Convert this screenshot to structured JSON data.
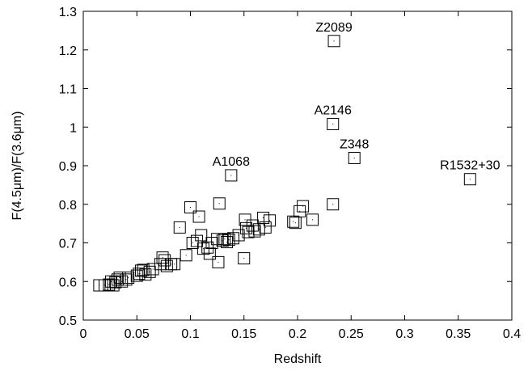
{
  "chart_data": {
    "type": "scatter",
    "title": "",
    "xlabel": "Redshift",
    "ylabel": "F(4.5μm)/F(3.6μm)",
    "xlim": [
      0,
      0.4
    ],
    "ylim": [
      0.5,
      1.3
    ],
    "xticks": [
      "0",
      "0.05",
      "0.1",
      "0.15",
      "0.2",
      "0.25",
      "0.3",
      "0.35",
      "0.4"
    ],
    "yticks": [
      "0.5",
      "0.6",
      "0.7",
      "0.8",
      "0.9",
      "1",
      "1.1",
      "1.2",
      "1.3"
    ],
    "grid": false,
    "legend": "none",
    "marker": "open-square",
    "points": [
      {
        "x": 0.015,
        "y": 0.59
      },
      {
        "x": 0.02,
        "y": 0.59
      },
      {
        "x": 0.024,
        "y": 0.592
      },
      {
        "x": 0.026,
        "y": 0.6
      },
      {
        "x": 0.028,
        "y": 0.59
      },
      {
        "x": 0.03,
        "y": 0.598
      },
      {
        "x": 0.032,
        "y": 0.605
      },
      {
        "x": 0.034,
        "y": 0.61
      },
      {
        "x": 0.036,
        "y": 0.6
      },
      {
        "x": 0.04,
        "y": 0.605
      },
      {
        "x": 0.042,
        "y": 0.61
      },
      {
        "x": 0.05,
        "y": 0.615
      },
      {
        "x": 0.052,
        "y": 0.62
      },
      {
        "x": 0.054,
        "y": 0.628
      },
      {
        "x": 0.056,
        "y": 0.63
      },
      {
        "x": 0.058,
        "y": 0.618
      },
      {
        "x": 0.062,
        "y": 0.625
      },
      {
        "x": 0.065,
        "y": 0.632
      },
      {
        "x": 0.072,
        "y": 0.645
      },
      {
        "x": 0.074,
        "y": 0.662
      },
      {
        "x": 0.076,
        "y": 0.655
      },
      {
        "x": 0.078,
        "y": 0.64
      },
      {
        "x": 0.082,
        "y": 0.645
      },
      {
        "x": 0.085,
        "y": 0.645
      },
      {
        "x": 0.09,
        "y": 0.74
      },
      {
        "x": 0.096,
        "y": 0.668
      },
      {
        "x": 0.1,
        "y": 0.792
      },
      {
        "x": 0.102,
        "y": 0.7
      },
      {
        "x": 0.106,
        "y": 0.705
      },
      {
        "x": 0.108,
        "y": 0.768
      },
      {
        "x": 0.11,
        "y": 0.72
      },
      {
        "x": 0.112,
        "y": 0.685
      },
      {
        "x": 0.116,
        "y": 0.688
      },
      {
        "x": 0.118,
        "y": 0.672
      },
      {
        "x": 0.12,
        "y": 0.7
      },
      {
        "x": 0.125,
        "y": 0.71
      },
      {
        "x": 0.126,
        "y": 0.65
      },
      {
        "x": 0.127,
        "y": 0.802
      },
      {
        "x": 0.13,
        "y": 0.706
      },
      {
        "x": 0.132,
        "y": 0.71
      },
      {
        "x": 0.134,
        "y": 0.702
      },
      {
        "x": 0.136,
        "y": 0.708
      },
      {
        "x": 0.138,
        "y": 0.875
      },
      {
        "x": 0.14,
        "y": 0.712
      },
      {
        "x": 0.145,
        "y": 0.72
      },
      {
        "x": 0.15,
        "y": 0.66
      },
      {
        "x": 0.151,
        "y": 0.76
      },
      {
        "x": 0.152,
        "y": 0.738
      },
      {
        "x": 0.154,
        "y": 0.728
      },
      {
        "x": 0.158,
        "y": 0.745
      },
      {
        "x": 0.16,
        "y": 0.73
      },
      {
        "x": 0.164,
        "y": 0.735
      },
      {
        "x": 0.168,
        "y": 0.765
      },
      {
        "x": 0.17,
        "y": 0.74
      },
      {
        "x": 0.174,
        "y": 0.758
      },
      {
        "x": 0.196,
        "y": 0.755
      },
      {
        "x": 0.198,
        "y": 0.752
      },
      {
        "x": 0.202,
        "y": 0.782
      },
      {
        "x": 0.205,
        "y": 0.795
      },
      {
        "x": 0.214,
        "y": 0.76
      },
      {
        "x": 0.233,
        "y": 0.8
      },
      {
        "x": 0.233,
        "y": 1.008
      },
      {
        "x": 0.234,
        "y": 1.223
      },
      {
        "x": 0.253,
        "y": 0.92
      },
      {
        "x": 0.361,
        "y": 0.865
      }
    ],
    "annotations": [
      {
        "text": "Z2089",
        "x": 0.234,
        "y": 1.223
      },
      {
        "text": "A2146",
        "x": 0.233,
        "y": 1.008
      },
      {
        "text": "Z348",
        "x": 0.253,
        "y": 0.92
      },
      {
        "text": "A1068",
        "x": 0.138,
        "y": 0.875
      },
      {
        "text": "R1532+30",
        "x": 0.361,
        "y": 0.865
      }
    ]
  }
}
